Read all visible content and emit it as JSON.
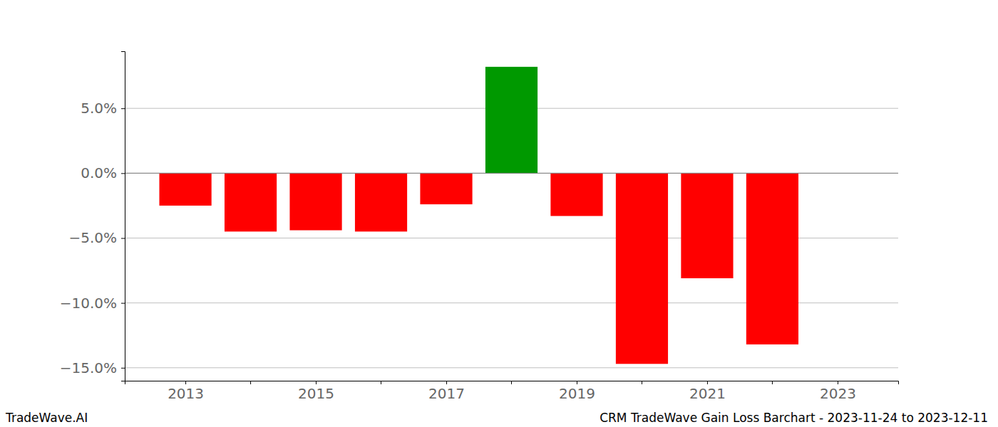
{
  "chart_data": {
    "type": "bar",
    "title": "CRM TradeWave Gain Loss Barchart - 2023-11-24 to 2023-12-11",
    "annotations": [
      "TradeWave.AI"
    ],
    "x": [
      2013,
      2014,
      2015,
      2016,
      2017,
      2018,
      2019,
      2020,
      2021,
      2022
    ],
    "values": [
      -2.5,
      -4.5,
      -4.4,
      -4.5,
      -2.4,
      8.2,
      -3.3,
      -14.7,
      -8.1,
      -13.2
    ],
    "colors": [
      "#ff0000",
      "#ff0000",
      "#ff0000",
      "#ff0000",
      "#ff0000",
      "#009900",
      "#ff0000",
      "#ff0000",
      "#ff0000",
      "#ff0000"
    ],
    "xlim": [
      2012.07,
      2023.93
    ],
    "xticks": [
      2013,
      2015,
      2017,
      2019,
      2021,
      2023
    ],
    "ylim": [
      -16.0,
      9.4
    ],
    "yticks": [
      {
        "value": -15,
        "label": "−15.0%"
      },
      {
        "value": -10,
        "label": "−10.0%"
      },
      {
        "value": -5,
        "label": "−5.0%"
      },
      {
        "value": 0,
        "label": "0.0%"
      },
      {
        "value": 5,
        "label": "5.0%"
      }
    ],
    "grid": true
  }
}
